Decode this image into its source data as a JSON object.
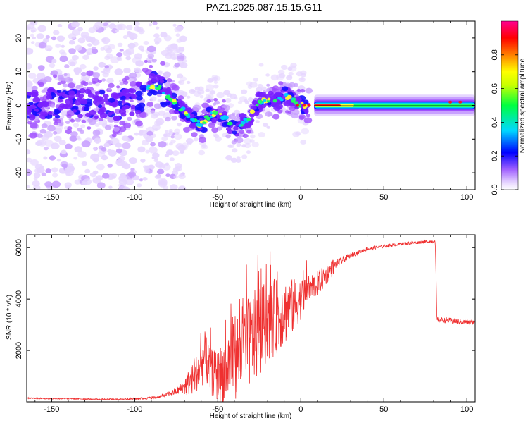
{
  "title": "PAZ1.2025.087.15.15.G11",
  "chart_data": [
    {
      "type": "heatmap",
      "xlabel": "Height of straight line (km)",
      "ylabel": "Frequency (Hz)",
      "xlim": [
        -165,
        105
      ],
      "ylim": [
        -25,
        25
      ],
      "xticks": [
        -150,
        -100,
        -50,
        0,
        50,
        100
      ],
      "yticks": [
        -20,
        -10,
        0,
        10,
        20
      ],
      "colorbar": {
        "label": "Normalized spectral amplitude",
        "range": [
          0,
          1
        ],
        "ticks": [
          0.0,
          0.2,
          0.4,
          0.6,
          0.8
        ],
        "placement": "right"
      },
      "ridge": {
        "x": [
          -160,
          -150,
          -140,
          -130,
          -120,
          -110,
          -100,
          -90,
          -85,
          -80,
          -75,
          -70,
          -65,
          -60,
          -55,
          -50,
          -45,
          -40,
          -35,
          -30,
          -25,
          -20,
          -15,
          -10,
          -5,
          0,
          5,
          10,
          20,
          30,
          40,
          50,
          60,
          70,
          80,
          90,
          100,
          104
        ],
        "y": [
          0,
          1,
          0,
          1,
          0,
          0,
          1,
          6,
          5,
          3,
          0,
          -2,
          -4,
          -6,
          -3,
          -2,
          -4,
          -8,
          -5,
          -3,
          1,
          2,
          1,
          3,
          2,
          0,
          0,
          0,
          0,
          0,
          0,
          0,
          0,
          0,
          0,
          0,
          0,
          0
        ]
      }
    },
    {
      "type": "line",
      "xlabel": "Height of straight line (km)",
      "ylabel": "SNR (10 * v/v)",
      "xlim": [
        -165,
        105
      ],
      "ylim": [
        0,
        6500
      ],
      "xticks": [
        -150,
        -100,
        -50,
        0,
        50,
        100
      ],
      "yticks": [
        2000,
        4000,
        6000
      ],
      "color": "#ef3030",
      "grid": false,
      "series": [
        {
          "x": [
            -165,
            -150,
            -140,
            -130,
            -120,
            -110,
            -100,
            -90,
            -85,
            -80,
            -75,
            -70,
            -65,
            -60,
            -58,
            -55,
            -50,
            -45,
            -40,
            -35,
            -30,
            -25,
            -20,
            -15,
            -10,
            -5,
            0,
            5,
            10,
            15,
            20,
            30,
            40,
            50,
            60,
            70,
            80,
            81,
            82,
            90,
            100,
            105
          ],
          "y": [
            150,
            120,
            130,
            110,
            100,
            100,
            120,
            150,
            200,
            300,
            400,
            600,
            900,
            1400,
            1800,
            1200,
            1000,
            1300,
            1800,
            2000,
            2400,
            2700,
            3100,
            3300,
            3500,
            3700,
            4000,
            4400,
            4600,
            4900,
            5300,
            5700,
            5950,
            6050,
            6150,
            6200,
            6250,
            6200,
            3200,
            3150,
            3100,
            3100
          ],
          "spread": [
            40,
            40,
            40,
            40,
            40,
            40,
            60,
            80,
            100,
            150,
            250,
            400,
            600,
            900,
            1000,
            900,
            1000,
            1400,
            1700,
            1800,
            1800,
            1800,
            1600,
            1500,
            1300,
            1100,
            800,
            600,
            500,
            400,
            300,
            150,
            120,
            100,
            100,
            100,
            100,
            100,
            150,
            200,
            150,
            150
          ]
        }
      ]
    }
  ]
}
